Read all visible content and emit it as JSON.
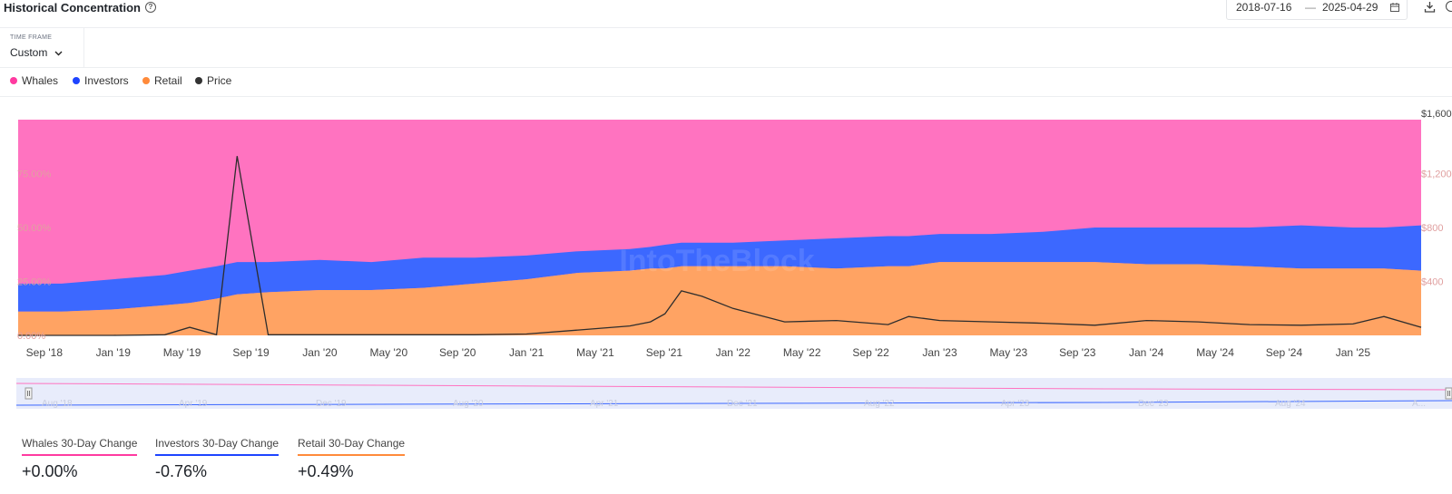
{
  "header": {
    "title": "Historical Concentration",
    "help_icon": "question-circle-icon",
    "date_from": "2018-07-16",
    "date_to": "2025-04-29",
    "date_separator": "—",
    "calendar_icon": "calendar-icon",
    "download_icon": "download-icon"
  },
  "timeframe": {
    "label": "TIME FRAME",
    "value": "Custom",
    "chevron_icon": "chevron-down-icon"
  },
  "legend": [
    {
      "label": "Whales",
      "color": "#ff3aa0"
    },
    {
      "label": "Investors",
      "color": "#1e44ff"
    },
    {
      "label": "Retail",
      "color": "#ff8a3a"
    },
    {
      "label": "Price",
      "color": "#333333"
    }
  ],
  "watermark": "IntoTheBlock",
  "colors": {
    "whales_fill": "#ff73c0",
    "investors_fill": "#3c68ff",
    "retail_fill": "#ffa363",
    "price_line": "#2d2d2d",
    "axis_text": "#e0a0a0",
    "navigator_bg": "#e8ecfb"
  },
  "chart_data": {
    "type": "area",
    "stacked_percent": true,
    "x_range": [
      "2018-07-16",
      "2025-04-29"
    ],
    "x_ticks": [
      "Sep '18",
      "Jan '19",
      "May '19",
      "Sep '19",
      "Jan '20",
      "May '20",
      "Sep '20",
      "Jan '21",
      "May '21",
      "Sep '21",
      "Jan '22",
      "May '22",
      "Sep '22",
      "Jan '23",
      "May '23",
      "Sep '23",
      "Jan '24",
      "May '24",
      "Sep '24",
      "Jan '25"
    ],
    "y_left_ticks": [
      "0.00%",
      "25.00%",
      "50.00%",
      "75.00%"
    ],
    "y_left_range": [
      0,
      100
    ],
    "y_right_ticks": [
      "$400",
      "$800",
      "$1,200",
      "$1,600"
    ],
    "y_right_range": [
      0,
      1600
    ],
    "x": [
      2018.54,
      2018.75,
      2019.0,
      2019.25,
      2019.37,
      2019.5,
      2019.6,
      2019.75,
      2020.0,
      2020.25,
      2020.5,
      2020.75,
      2021.0,
      2021.25,
      2021.5,
      2021.6,
      2021.67,
      2021.75,
      2021.85,
      2022.0,
      2022.25,
      2022.5,
      2022.75,
      2022.85,
      2023.0,
      2023.25,
      2023.5,
      2023.75,
      2024.0,
      2024.25,
      2024.5,
      2024.75,
      2025.0,
      2025.15,
      2025.33
    ],
    "series": [
      {
        "name": "Retail",
        "values": [
          11,
          11,
          12,
          14,
          15,
          17,
          19,
          20,
          21,
          21,
          22,
          24,
          26,
          29,
          30,
          31,
          31,
          32,
          32,
          32,
          32,
          31,
          32,
          32,
          34,
          34,
          34,
          34,
          33,
          33,
          32,
          31,
          31,
          31,
          30
        ]
      },
      {
        "name": "Investors",
        "values": [
          13,
          13,
          14,
          14,
          15,
          15,
          15,
          14,
          14,
          13,
          14,
          12,
          11,
          10,
          10,
          10,
          11,
          11,
          11,
          11,
          12,
          14,
          14,
          14,
          13,
          13,
          14,
          16,
          17,
          17,
          18,
          20,
          19,
          19,
          21
        ]
      },
      {
        "name": "Whales",
        "values": [
          76,
          76,
          74,
          72,
          70,
          68,
          66,
          66,
          65,
          66,
          64,
          64,
          63,
          61,
          60,
          59,
          58,
          57,
          57,
          57,
          56,
          55,
          54,
          54,
          53,
          53,
          52,
          50,
          50,
          50,
          50,
          49,
          50,
          50,
          49
        ]
      },
      {
        "name": "Price",
        "axis": "right",
        "values": [
          0,
          0,
          0,
          5,
          60,
          5,
          1330,
          5,
          5,
          5,
          5,
          5,
          10,
          40,
          70,
          100,
          160,
          330,
          290,
          200,
          100,
          110,
          80,
          140,
          110,
          100,
          90,
          75,
          110,
          100,
          80,
          75,
          85,
          140,
          60
        ]
      }
    ]
  },
  "navigator": {
    "ticks": [
      "Aug '18",
      "Apr '19",
      "Dec '19",
      "Aug '20",
      "Apr '21",
      "Dec '21",
      "Aug '22",
      "Apr '23",
      "Dec '23",
      "Aug '24",
      "A..."
    ],
    "handle_left_icon": "grip-handle-icon",
    "handle_right_icon": "grip-handle-icon"
  },
  "stats": [
    {
      "label": "Whales 30-Day Change",
      "value": "+0.00%",
      "color": "#ff3aa0"
    },
    {
      "label": "Investors 30-Day Change",
      "value": "-0.76%",
      "color": "#1e44ff"
    },
    {
      "label": "Retail 30-Day Change",
      "value": "+0.49%",
      "color": "#ff8a3a"
    }
  ]
}
